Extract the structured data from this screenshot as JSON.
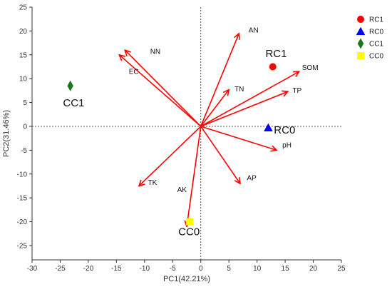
{
  "chart_data": {
    "type": "scatter",
    "subtype": "pca-biplot",
    "title": "",
    "xlabel": "PC1(42.21%)",
    "ylabel": "PC2(31.46%)",
    "xlim": [
      -30,
      25
    ],
    "ylim": [
      -28,
      25
    ],
    "x_ticks": [
      -30,
      -25,
      -20,
      -15,
      -10,
      -5,
      0,
      5,
      10,
      15,
      20,
      25
    ],
    "y_ticks": [
      -25,
      -20,
      -15,
      -10,
      -5,
      0,
      5,
      10,
      15,
      20,
      25
    ],
    "zero_lines": "dotted",
    "legend_position": "right",
    "loadings": [
      {
        "name": "AN",
        "x": 6.8,
        "y": 19.5
      },
      {
        "name": "SOM",
        "x": 17.5,
        "y": 11.5
      },
      {
        "name": "TP",
        "x": 15.5,
        "y": 7.3
      },
      {
        "name": "TN",
        "x": 5.0,
        "y": 7.7
      },
      {
        "name": "pH",
        "x": 13.5,
        "y": -5.0
      },
      {
        "name": "AP",
        "x": 7.0,
        "y": -12.0
      },
      {
        "name": "AK",
        "x": -2.5,
        "y": -21.0
      },
      {
        "name": "TK",
        "x": -11.0,
        "y": -12.5
      },
      {
        "name": "NN",
        "x": -13.5,
        "y": 16.0
      },
      {
        "name": "EC",
        "x": -14.5,
        "y": 15.0
      }
    ],
    "loading_label_offsets": {
      "AN": [
        8.5,
        19.7
      ],
      "SOM": [
        18.0,
        11.8
      ],
      "TP": [
        16.3,
        7.0
      ],
      "TN": [
        6.0,
        7.3
      ],
      "pH": [
        14.5,
        -4.4
      ],
      "AP": [
        8.2,
        -11.3
      ],
      "AK": [
        -4.2,
        -13.8
      ],
      "TK": [
        -9.4,
        -12.3
      ],
      "NN": [
        -9.0,
        15.2
      ],
      "EC": [
        -12.8,
        11.0
      ]
    },
    "series": [
      {
        "name": "RC1",
        "marker": "circle",
        "color": "#ff0000",
        "points": [
          [
            12.8,
            12.5
          ]
        ],
        "label": "RC1"
      },
      {
        "name": "RC0",
        "marker": "triangle",
        "color": "#0000ff",
        "points": [
          [
            12.0,
            -0.3
          ]
        ],
        "label": "RC0"
      },
      {
        "name": "CC1",
        "marker": "diamond",
        "color": "#1a7a1a",
        "points": [
          [
            -23.2,
            8.5
          ]
        ],
        "label": "CC1"
      },
      {
        "name": "CC0",
        "marker": "square",
        "color": "#ffff00",
        "points": [
          [
            -2.0,
            -20.0
          ]
        ],
        "label": "CC0"
      }
    ],
    "point_label_offsets": {
      "RC1": [
        11.5,
        14.5
      ],
      "RC0": [
        13.0,
        -1.5
      ],
      "CC1": [
        -24.5,
        4.2
      ],
      "CC0": [
        -4.0,
        -22.8
      ]
    },
    "arrow_color": "#ff0000"
  }
}
